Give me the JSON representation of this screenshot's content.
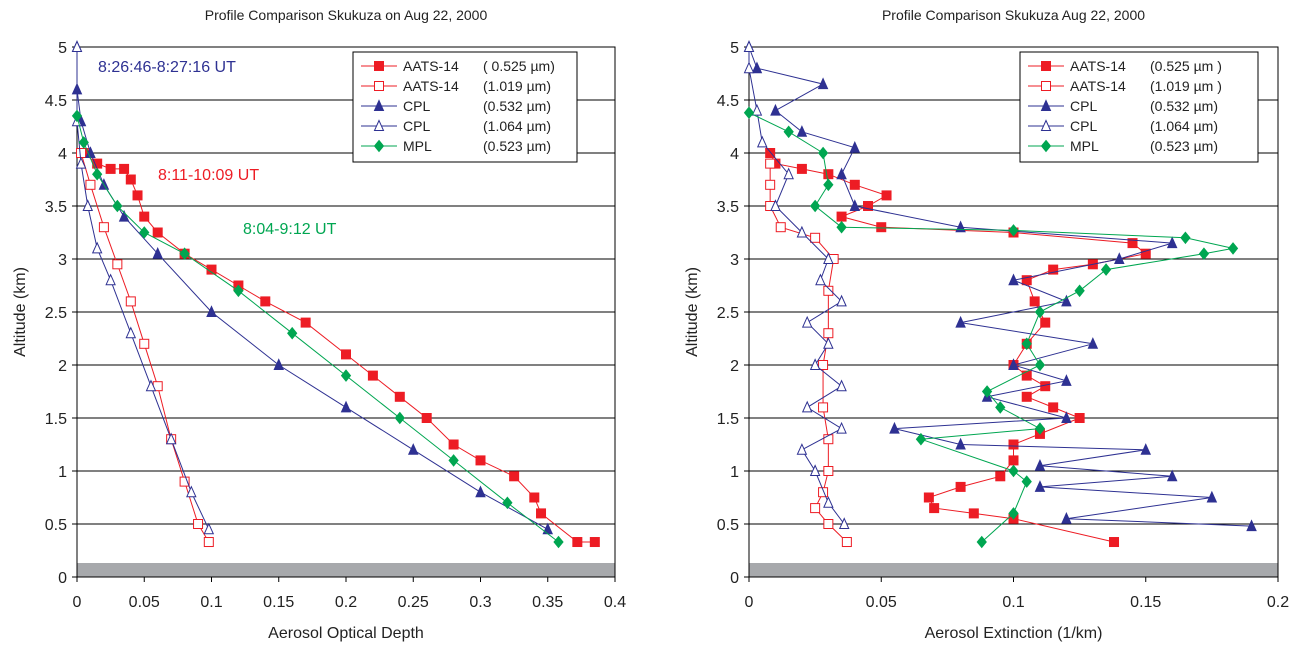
{
  "chart_data": [
    {
      "type": "line",
      "title": "Profile Comparison Skukuza on Aug 22, 2000",
      "xlabel": "Aerosol Optical Depth",
      "ylabel": "Altitude (km)",
      "xlim": [
        0,
        0.4
      ],
      "ylim": [
        0,
        5
      ],
      "xticks": [
        0,
        0.05,
        0.1,
        0.15,
        0.2,
        0.25,
        0.3,
        0.35,
        0.4
      ],
      "yticks": [
        0,
        0.5,
        1,
        1.5,
        2,
        2.5,
        3,
        3.5,
        4,
        4.5,
        5
      ],
      "grid": true,
      "legend": "upper right",
      "annotations": [
        {
          "text": "8:26:46-8:27:16 UT",
          "color": "#2e3192"
        },
        {
          "text": "8:11-10:09 UT",
          "color": "#ed1c24"
        },
        {
          "text": "8:04-9:12 UT",
          "color": "#00a651"
        }
      ],
      "series": [
        {
          "name": "AATS-14",
          "band": "( 0.525 µm)",
          "color": "#ed1c24",
          "marker": "square",
          "filled": true,
          "x": [
            0.385,
            0.372,
            0.345,
            0.34,
            0.325,
            0.3,
            0.28,
            0.26,
            0.24,
            0.22,
            0.2,
            0.17,
            0.14,
            0.12,
            0.1,
            0.08,
            0.06,
            0.05,
            0.045,
            0.04,
            0.035,
            0.025,
            0.015,
            0.005
          ],
          "values": [
            0.33,
            0.33,
            0.6,
            0.75,
            0.95,
            1.1,
            1.25,
            1.5,
            1.7,
            1.9,
            2.1,
            2.4,
            2.6,
            2.75,
            2.9,
            3.05,
            3.25,
            3.4,
            3.6,
            3.75,
            3.85,
            3.85,
            3.9,
            4.0
          ]
        },
        {
          "name": "AATS-14",
          "band": "(1.019 µm)",
          "color": "#ed1c24",
          "marker": "square",
          "filled": false,
          "x": [
            0.098,
            0.09,
            0.08,
            0.07,
            0.06,
            0.05,
            0.04,
            0.03,
            0.02,
            0.01,
            0.003
          ],
          "values": [
            0.33,
            0.5,
            0.9,
            1.3,
            1.8,
            2.2,
            2.6,
            2.95,
            3.3,
            3.7,
            4.0
          ]
        },
        {
          "name": "CPL",
          "band": "(0.532 µm)",
          "color": "#2e3192",
          "marker": "triangle",
          "filled": true,
          "x": [
            0.35,
            0.3,
            0.25,
            0.2,
            0.15,
            0.1,
            0.06,
            0.035,
            0.02,
            0.01,
            0.003,
            0,
            0
          ],
          "values": [
            0.45,
            0.8,
            1.2,
            1.6,
            2.0,
            2.5,
            3.05,
            3.4,
            3.7,
            4.0,
            4.3,
            4.6,
            5.0
          ]
        },
        {
          "name": "CPL",
          "band": "(1.064 µm)",
          "color": "#2e3192",
          "marker": "triangle",
          "filled": false,
          "x": [
            0.098,
            0.085,
            0.07,
            0.055,
            0.04,
            0.025,
            0.015,
            0.008,
            0.003,
            0,
            0
          ],
          "values": [
            0.45,
            0.8,
            1.3,
            1.8,
            2.3,
            2.8,
            3.1,
            3.5,
            3.9,
            4.3,
            5.0
          ]
        },
        {
          "name": "MPL",
          "band": "(0.523 µm)",
          "color": "#00a651",
          "marker": "diamond",
          "filled": true,
          "x": [
            0.358,
            0.32,
            0.28,
            0.24,
            0.2,
            0.16,
            0.12,
            0.08,
            0.05,
            0.03,
            0.015,
            0.005,
            0
          ],
          "values": [
            0.33,
            0.7,
            1.1,
            1.5,
            1.9,
            2.3,
            2.7,
            3.05,
            3.25,
            3.5,
            3.8,
            4.1,
            4.35
          ]
        }
      ]
    },
    {
      "type": "line",
      "title": "Profile Comparison Skukuza Aug 22, 2000",
      "xlabel": "Aerosol Extinction (1/km)",
      "ylabel": "Altitude (km)",
      "xlim": [
        0,
        0.2
      ],
      "ylim": [
        0,
        5
      ],
      "xticks": [
        0,
        0.05,
        0.1,
        0.15,
        0.2
      ],
      "yticks": [
        0,
        0.5,
        1,
        1.5,
        2,
        2.5,
        3,
        3.5,
        4,
        4.5,
        5
      ],
      "grid": true,
      "legend": "upper right",
      "series": [
        {
          "name": "AATS-14",
          "band": "(0.525 µm )",
          "color": "#ed1c24",
          "marker": "square",
          "filled": true,
          "x": [
            0.138,
            0.1,
            0.085,
            0.07,
            0.068,
            0.08,
            0.095,
            0.1,
            0.1,
            0.11,
            0.125,
            0.115,
            0.105,
            0.112,
            0.105,
            0.1,
            0.105,
            0.112,
            0.108,
            0.105,
            0.115,
            0.13,
            0.15,
            0.145,
            0.1,
            0.05,
            0.035,
            0.045,
            0.052,
            0.04,
            0.03,
            0.02,
            0.01,
            0.008
          ],
          "values": [
            0.33,
            0.55,
            0.6,
            0.65,
            0.75,
            0.85,
            0.95,
            1.1,
            1.25,
            1.35,
            1.5,
            1.6,
            1.7,
            1.8,
            1.9,
            2.0,
            2.2,
            2.4,
            2.6,
            2.8,
            2.9,
            2.95,
            3.05,
            3.15,
            3.25,
            3.3,
            3.4,
            3.5,
            3.6,
            3.7,
            3.8,
            3.85,
            3.9,
            4.0
          ]
        },
        {
          "name": "AATS-14",
          "band": "(1.019 µm )",
          "color": "#ed1c24",
          "marker": "square",
          "filled": false,
          "x": [
            0.037,
            0.03,
            0.025,
            0.028,
            0.03,
            0.03,
            0.028,
            0.028,
            0.03,
            0.03,
            0.032,
            0.025,
            0.012,
            0.008,
            0.008,
            0.008
          ],
          "values": [
            0.33,
            0.5,
            0.65,
            0.8,
            1.0,
            1.3,
            1.6,
            2.0,
            2.3,
            2.7,
            3.0,
            3.2,
            3.3,
            3.5,
            3.7,
            3.9
          ]
        },
        {
          "name": "CPL",
          "band": "(0.532 µm)",
          "color": "#2e3192",
          "marker": "triangle",
          "filled": true,
          "x": [
            0.19,
            0.12,
            0.175,
            0.11,
            0.16,
            0.11,
            0.15,
            0.08,
            0.055,
            0.12,
            0.09,
            0.12,
            0.1,
            0.13,
            0.08,
            0.12,
            0.1,
            0.14,
            0.16,
            0.08,
            0.04,
            0.035,
            0.04,
            0.02,
            0.01,
            0.028,
            0.003,
            0
          ],
          "values": [
            0.48,
            0.55,
            0.75,
            0.85,
            0.95,
            1.05,
            1.2,
            1.25,
            1.4,
            1.5,
            1.7,
            1.85,
            2.0,
            2.2,
            2.4,
            2.6,
            2.8,
            3.0,
            3.15,
            3.3,
            3.5,
            3.8,
            4.05,
            4.2,
            4.4,
            4.65,
            4.8,
            5.0
          ]
        },
        {
          "name": "CPL",
          "band": "(1.064 µm)",
          "color": "#2e3192",
          "marker": "triangle",
          "filled": false,
          "x": [
            0.036,
            0.03,
            0.025,
            0.02,
            0.035,
            0.022,
            0.035,
            0.025,
            0.03,
            0.022,
            0.035,
            0.027,
            0.03,
            0.02,
            0.01,
            0.015,
            0.005,
            0.003,
            0,
            0
          ],
          "values": [
            0.5,
            0.7,
            1.0,
            1.2,
            1.4,
            1.6,
            1.8,
            2.0,
            2.2,
            2.4,
            2.6,
            2.8,
            3.0,
            3.25,
            3.5,
            3.8,
            4.1,
            4.4,
            4.8,
            5.0
          ]
        },
        {
          "name": "MPL",
          "band": "(0.523 µm)",
          "color": "#00a651",
          "marker": "diamond",
          "filled": true,
          "x": [
            0.088,
            0.1,
            0.105,
            0.1,
            0.065,
            0.11,
            0.095,
            0.09,
            0.11,
            0.105,
            0.11,
            0.125,
            0.135,
            0.172,
            0.183,
            0.165,
            0.1,
            0.035,
            0.025,
            0.03,
            0.028,
            0.015,
            0
          ],
          "values": [
            0.33,
            0.6,
            0.9,
            1.0,
            1.3,
            1.4,
            1.6,
            1.75,
            2.0,
            2.2,
            2.5,
            2.7,
            2.9,
            3.05,
            3.1,
            3.2,
            3.27,
            3.3,
            3.5,
            3.7,
            4.0,
            4.2,
            4.38
          ]
        }
      ]
    }
  ]
}
